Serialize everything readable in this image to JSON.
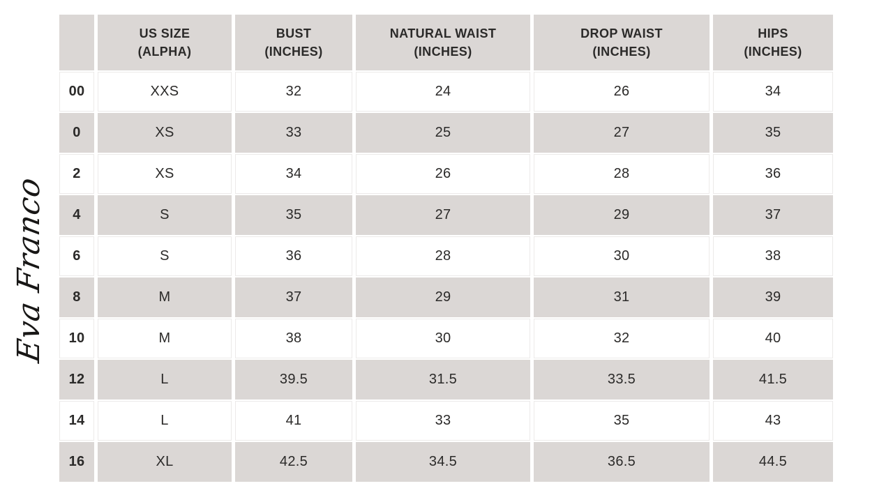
{
  "brand": {
    "logo_text": "Eva Franco"
  },
  "colors": {
    "row_shade": "#dbd7d5",
    "text": "#2b2a29",
    "background": "#ffffff"
  },
  "table": {
    "columns": [
      {
        "line1": "",
        "line2": ""
      },
      {
        "line1": "US SIZE",
        "line2": "(ALPHA)"
      },
      {
        "line1": "BUST",
        "line2": "(INCHES)"
      },
      {
        "line1": "NATURAL WAIST",
        "line2": "(INCHES)"
      },
      {
        "line1": "DROP WAIST",
        "line2": "(INCHES)"
      },
      {
        "line1": "HIPS",
        "line2": "(INCHES)"
      }
    ],
    "rows": [
      [
        "00",
        "XXS",
        "32",
        "24",
        "26",
        "34"
      ],
      [
        "0",
        "XS",
        "33",
        "25",
        "27",
        "35"
      ],
      [
        "2",
        "XS",
        "34",
        "26",
        "28",
        "36"
      ],
      [
        "4",
        "S",
        "35",
        "27",
        "29",
        "37"
      ],
      [
        "6",
        "S",
        "36",
        "28",
        "30",
        "38"
      ],
      [
        "8",
        "M",
        "37",
        "29",
        "31",
        "39"
      ],
      [
        "10",
        "M",
        "38",
        "30",
        "32",
        "40"
      ],
      [
        "12",
        "L",
        "39.5",
        "31.5",
        "33.5",
        "41.5"
      ],
      [
        "14",
        "L",
        "41",
        "33",
        "35",
        "43"
      ],
      [
        "16",
        "XL",
        "42.5",
        "34.5",
        "36.5",
        "44.5"
      ]
    ]
  },
  "chart_data": {
    "type": "table",
    "columns": [
      "",
      "US SIZE (ALPHA)",
      "BUST (INCHES)",
      "NATURAL WAIST (INCHES)",
      "DROP WAIST (INCHES)",
      "HIPS (INCHES)"
    ],
    "rows": [
      [
        "00",
        "XXS",
        32,
        24,
        26,
        34
      ],
      [
        "0",
        "XS",
        33,
        25,
        27,
        35
      ],
      [
        "2",
        "XS",
        34,
        26,
        28,
        36
      ],
      [
        "4",
        "S",
        35,
        27,
        29,
        37
      ],
      [
        "6",
        "S",
        36,
        28,
        30,
        38
      ],
      [
        "8",
        "M",
        37,
        29,
        31,
        39
      ],
      [
        "10",
        "M",
        38,
        30,
        32,
        40
      ],
      [
        "12",
        "L",
        39.5,
        31.5,
        33.5,
        41.5
      ],
      [
        "14",
        "L",
        41,
        33,
        35,
        43
      ],
      [
        "16",
        "XL",
        42.5,
        34.5,
        36.5,
        44.5
      ]
    ],
    "layout_hints": {
      "header_background": "#dbd7d5",
      "alternating_row_shading": true,
      "grid": "white-gaps-between-cells"
    }
  }
}
